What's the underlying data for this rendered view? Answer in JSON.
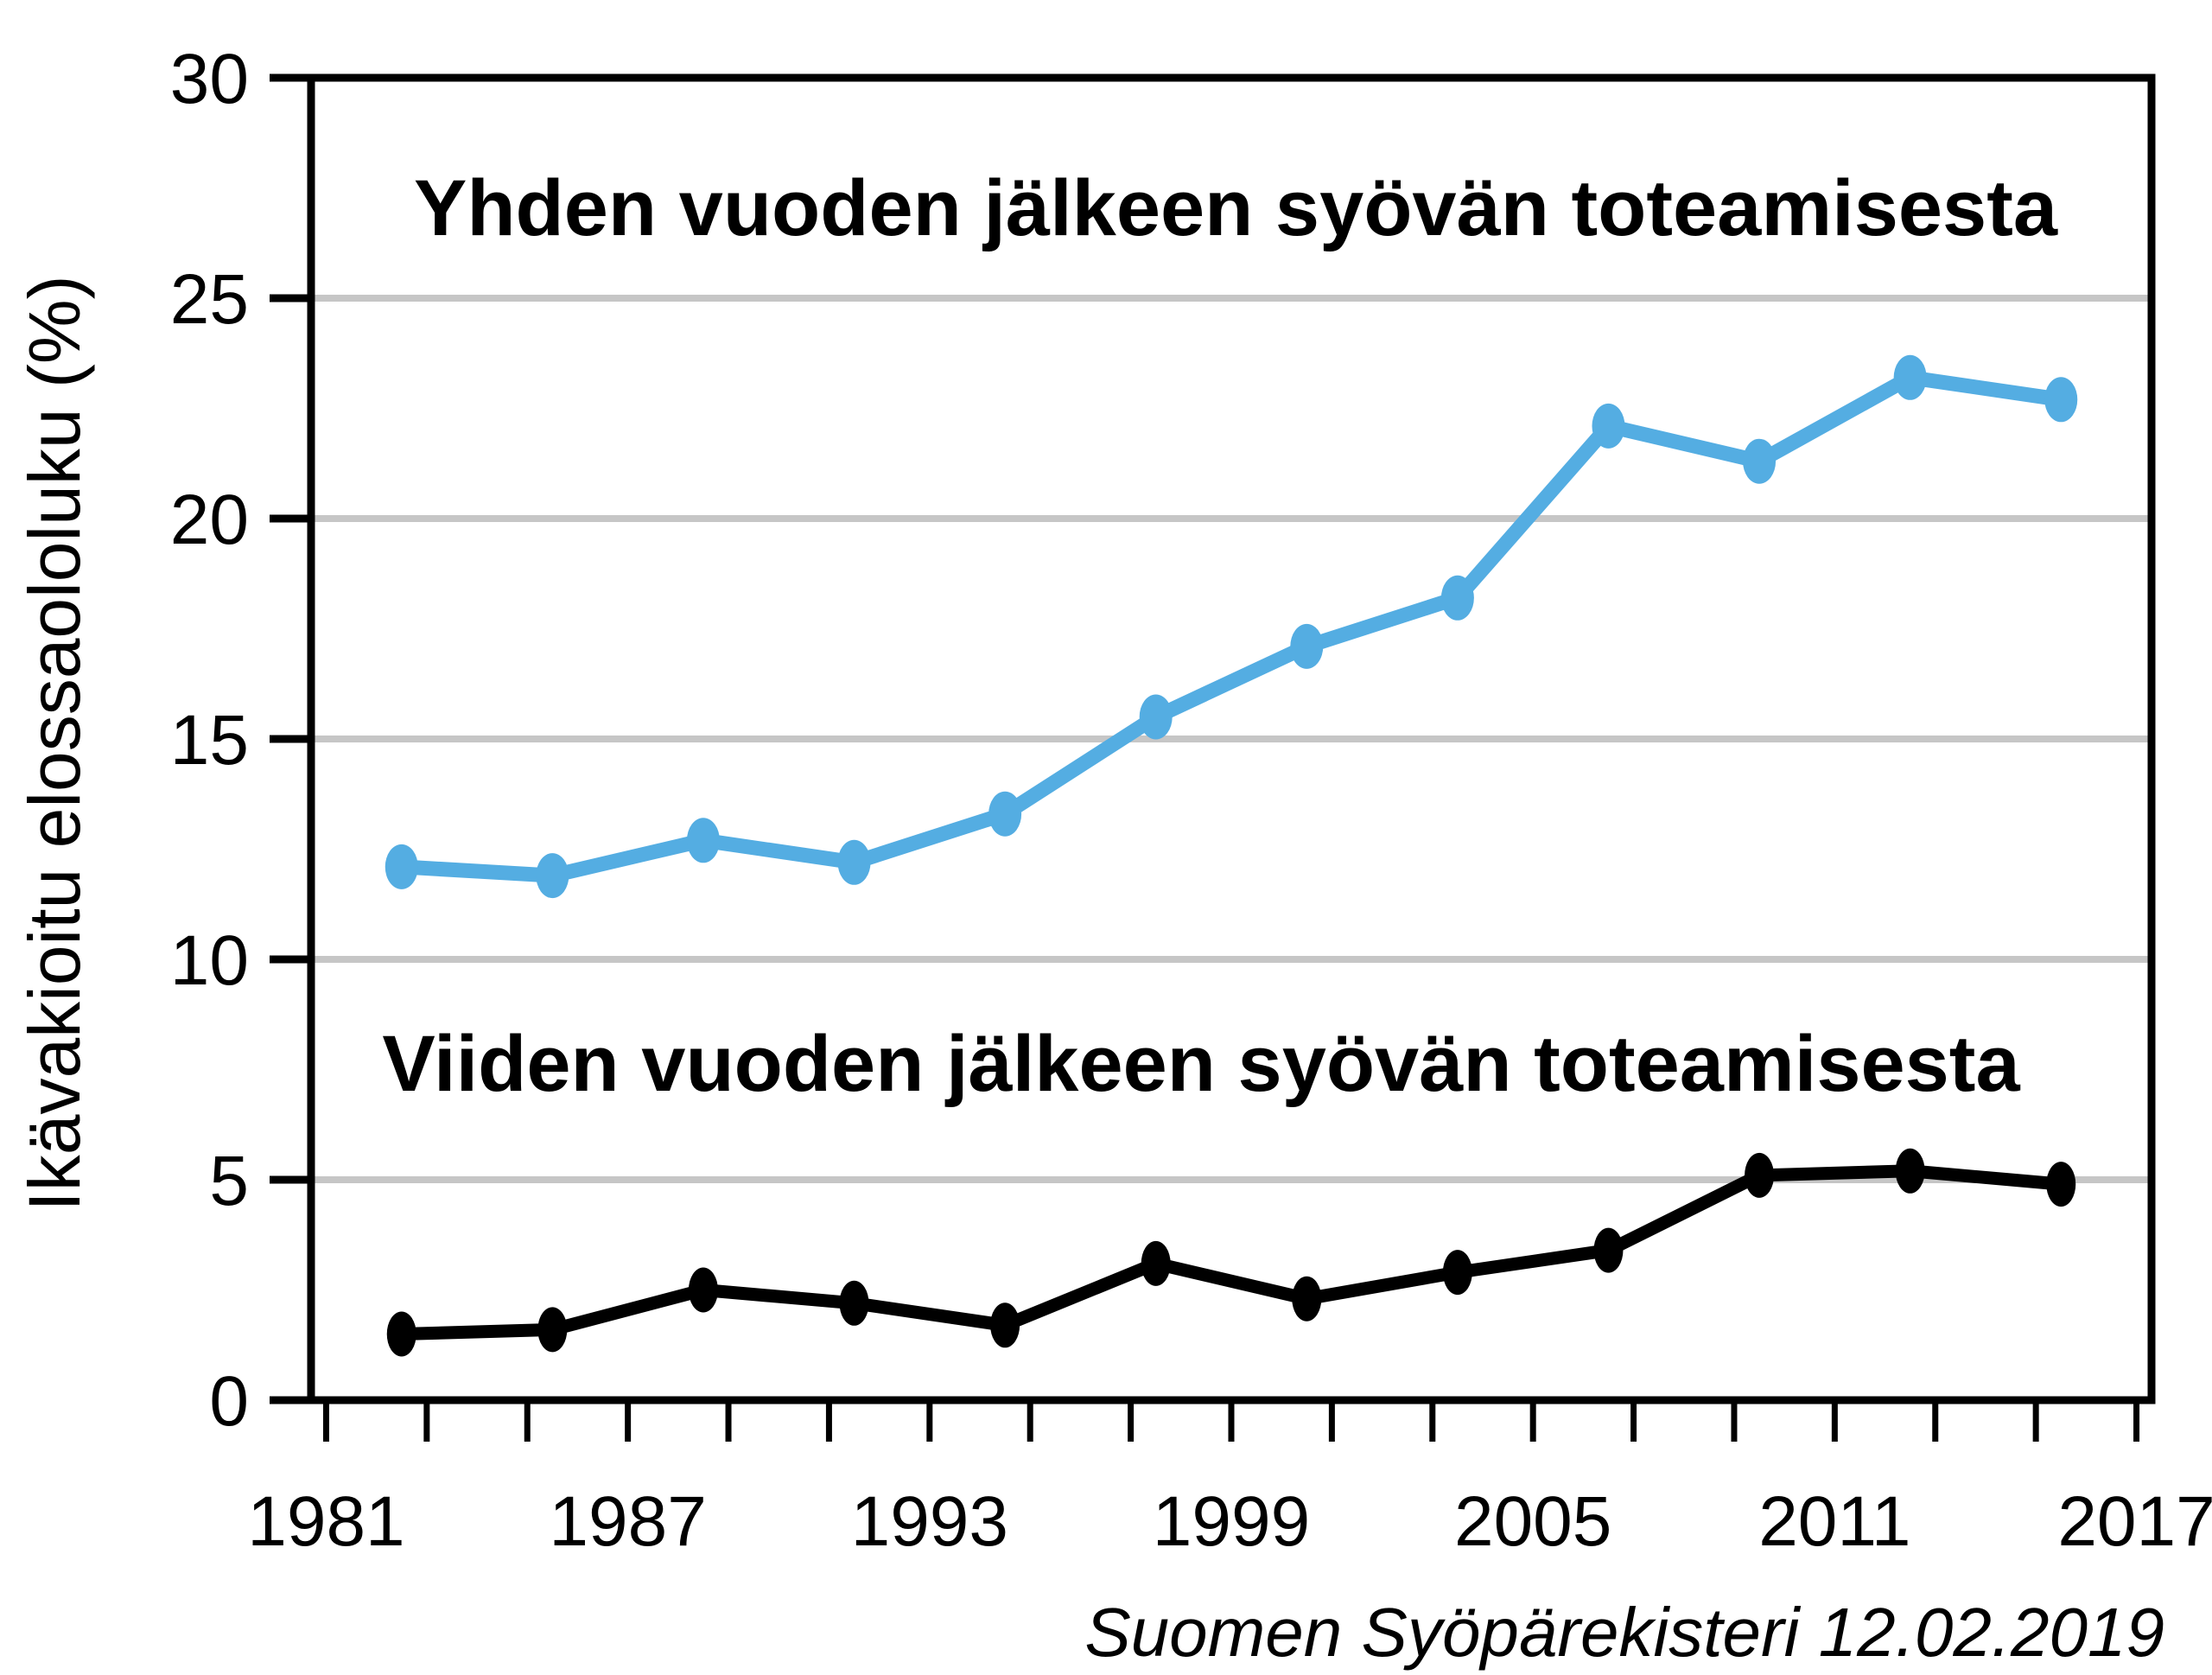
{
  "chart_data": {
    "type": "line",
    "title": "",
    "ylabel": "Ikävakioitu elossaololuku (%)",
    "xlabel": "",
    "source_note": "Suomen Syöpärekisteri 12.02.2019",
    "categories_years": [
      1982,
      1985,
      1988,
      1991,
      1994,
      1997,
      2000,
      2003,
      2006,
      2009,
      2012,
      2015
    ],
    "series": [
      {
        "name": "Yhden vuoden jälkeen syövän toteamisesta",
        "color": "#54ADE2",
        "values": [
          12.1,
          11.9,
          12.7,
          12.2,
          13.3,
          15.5,
          17.1,
          18.2,
          22.1,
          21.3,
          23.2,
          22.7
        ]
      },
      {
        "name": "Viiden vuoden jälkeen syövän toteamisesta",
        "color": "#000000",
        "values": [
          1.5,
          1.6,
          2.5,
          2.2,
          1.7,
          3.1,
          2.3,
          2.9,
          3.4,
          5.1,
          5.2,
          4.9
        ]
      }
    ],
    "ylim": [
      0,
      30
    ],
    "y_ticks": [
      0,
      5,
      10,
      15,
      20,
      25,
      30
    ],
    "y_tick_labels": [
      "0",
      "5",
      "10",
      "15",
      "20",
      "25",
      "30"
    ],
    "x_range": [
      1980.7,
      2017.3
    ],
    "x_label_years": [
      1981,
      1987,
      1993,
      1999,
      2005,
      2011,
      2017
    ],
    "x_tick_labels": [
      "1981",
      "1987",
      "1993",
      "1999",
      "2005",
      "2011",
      "2017"
    ],
    "x_minor_tick_step_years": 2,
    "grid": "horizontal",
    "legend_position": "inline-labels"
  },
  "colors": {
    "background": "#FFFFFF",
    "axis": "#000000",
    "grid": "#C6C6C6",
    "one_year_blue": "#54ADE2",
    "five_year_black": "#000000"
  }
}
